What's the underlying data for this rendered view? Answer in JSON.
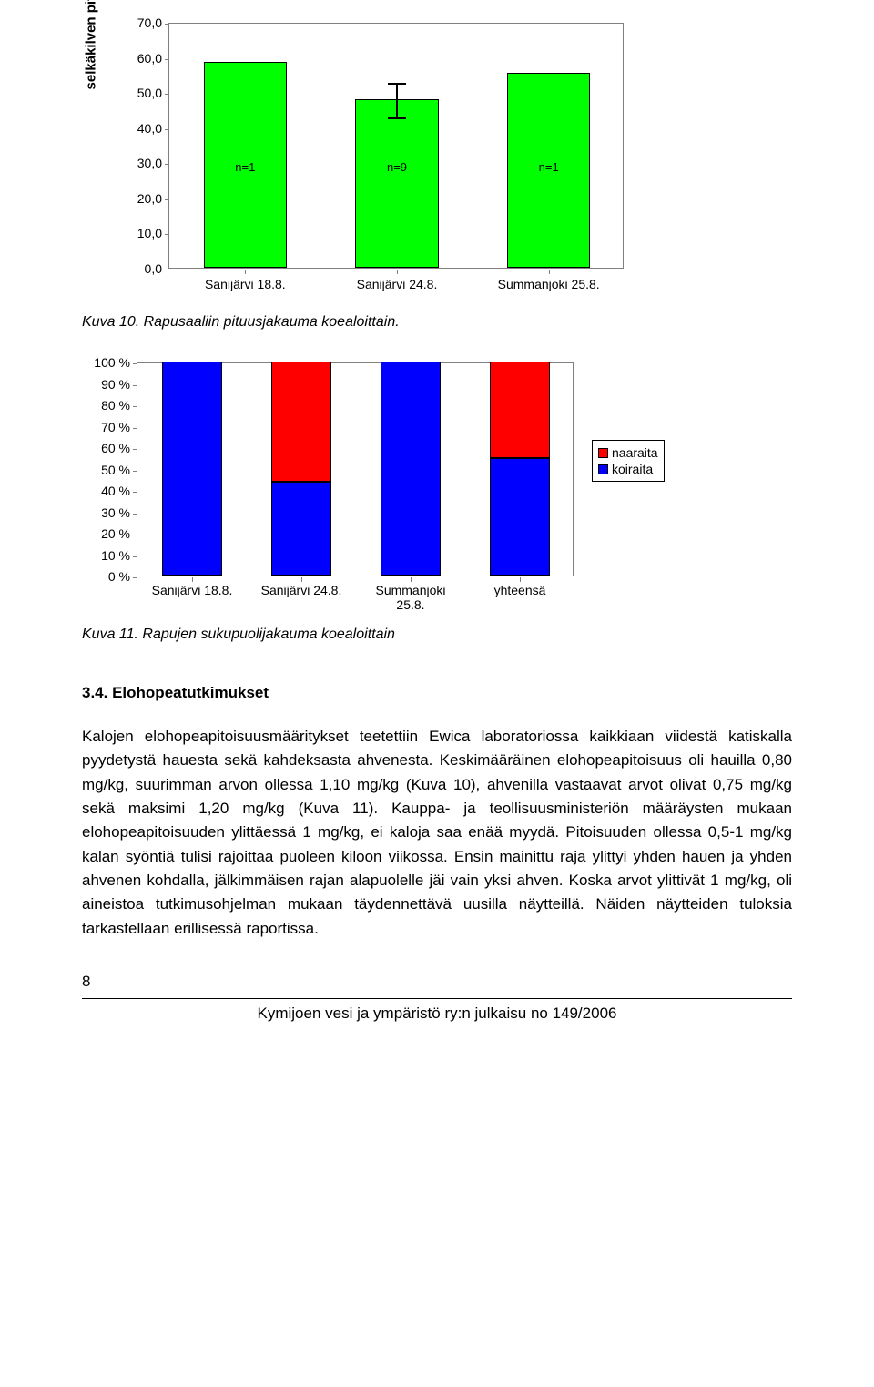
{
  "chart1": {
    "type": "bar",
    "y_axis_label": "selkäkilven pituus (mm)",
    "ylim": [
      0,
      70
    ],
    "ytick_step": 10,
    "ytick_format": ",0",
    "categories": [
      "Sanijärvi 18.8.",
      "Sanijärvi 24.8.",
      "Summanjoki 25.8."
    ],
    "values": [
      58.5,
      48,
      55.5
    ],
    "n_labels": [
      "n=1",
      "n=9",
      "n=1"
    ],
    "bar_color": "#00ff00",
    "border_color": "#808080",
    "error_bars": [
      null,
      {
        "low": 43,
        "high": 53
      },
      null
    ]
  },
  "caption1": "Kuva 10. Rapusaaliin pituusjakauma koealoittain.",
  "chart2": {
    "type": "stacked_bar_pct",
    "ylim": [
      0,
      100
    ],
    "ytick_step": 10,
    "categories": [
      "Sanijärvi 18.8.",
      "Sanijärvi 24.8.",
      "Summanjoki\n25.8.",
      "yhteensä"
    ],
    "series": [
      {
        "name": "koiraita",
        "color": "#0000ff",
        "values": [
          100,
          44,
          100,
          55
        ]
      },
      {
        "name": "naaraita",
        "color": "#ff0000",
        "values": [
          0,
          56,
          0,
          45
        ]
      }
    ],
    "legend_order": [
      "naaraita",
      "koiraita"
    ]
  },
  "caption2": "Kuva 11. Rapujen sukupuolijakauma koealoittain",
  "section": {
    "number": "3.4.",
    "title": "Elohopeatutkimukset"
  },
  "body": "Kalojen elohopeapitoisuusmääritykset teetettiin Ewica laboratoriossa kaikkiaan viidestä katiskalla pyydetystä hauesta sekä kahdeksasta ahvenesta. Keskimääräinen elohopeapitoisuus oli  hauilla 0,80 mg/kg, suurimman arvon ollessa 1,10 mg/kg (Kuva 10), ahvenilla vastaavat arvot olivat 0,75 mg/kg sekä maksimi 1,20 mg/kg (Kuva 11). Kauppa- ja teollisuusministeriön määräysten mukaan elohopeapitoisuuden ylittäessä 1 mg/kg, ei kaloja saa enää myydä. Pitoisuuden ollessa 0,5-1 mg/kg kalan syöntiä tulisi rajoittaa puoleen kiloon viikossa. Ensin mainittu raja ylittyi yhden hauen ja yhden ahvenen kohdalla,  jälkimmäisen rajan alapuolelle jäi vain yksi ahven. Koska arvot ylittivät 1 mg/kg, oli aineistoa tutkimusohjelman mukaan täydennettävä uusilla näytteillä. Näiden näytteiden tuloksia tarkastellaan erillisessä raportissa.",
  "page_number": "8",
  "footer": "Kymijoen vesi ja ympäristö ry:n julkaisu no 149/2006"
}
